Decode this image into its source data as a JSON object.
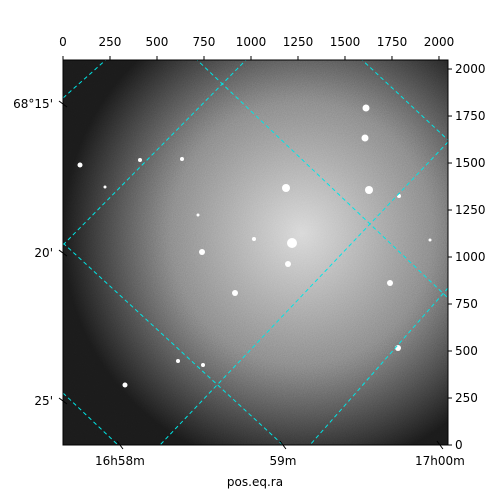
{
  "chart_data": {
    "type": "image",
    "xlabel": "pos.eq.ra",
    "xlim": [
      0,
      2048
    ],
    "ylim": [
      0,
      2048
    ],
    "xticks": [
      0,
      250,
      500,
      750,
      1000,
      1250,
      1500,
      1750,
      2000
    ],
    "yticks": [
      0,
      250,
      500,
      750,
      1000,
      1250,
      1500,
      1750,
      2000
    ],
    "ra_ticks": [
      {
        "value": 303,
        "label": "16h58m"
      },
      {
        "value": 1170,
        "label": "59m"
      },
      {
        "value": 2005,
        "label": "17h00m"
      }
    ],
    "dec_ticks": [
      {
        "value": 1814,
        "label": "68°15'"
      },
      {
        "value": 1021,
        "label": "20'"
      },
      {
        "value": 234,
        "label": "25'"
      }
    ],
    "grid_color": "#00e5e5"
  }
}
